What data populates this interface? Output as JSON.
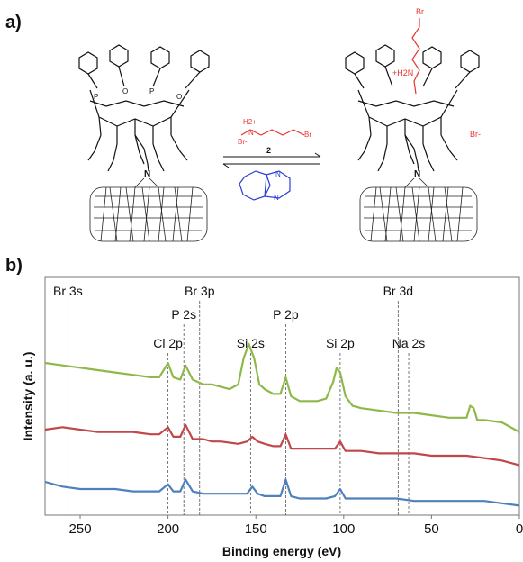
{
  "figure": {
    "panel_a_label": "a)",
    "panel_b_label": "b)"
  },
  "scheme": {
    "reagent_number": "2",
    "reagent_atoms": [
      "H2+",
      "N",
      "Br-",
      "Br"
    ],
    "left_atoms": [
      "N",
      "P",
      "O"
    ],
    "right_atoms": [
      "Br",
      "+H2N",
      "Br-",
      "N"
    ],
    "catalyst_atoms": [
      "N",
      "N"
    ],
    "reagent_color": "#e8332f",
    "catalyst_color": "#2b3fd6"
  },
  "chart_data": {
    "type": "line",
    "xlabel": "Binding energy (eV)",
    "ylabel": "Intensity (a. u.)",
    "xlim": [
      270,
      0
    ],
    "x_reversed": true,
    "xticks": [
      250,
      200,
      150,
      100,
      50,
      0
    ],
    "grid": false,
    "reference_lines": [
      {
        "label": "Br 3s",
        "x": 257
      },
      {
        "label": "Br 3p",
        "x": 182
      },
      {
        "label": "P 2s",
        "x": 191
      },
      {
        "label": "Cl 2p",
        "x": 200
      },
      {
        "label": "Si 2s",
        "x": 153
      },
      {
        "label": "P 2p",
        "x": 133
      },
      {
        "label": "Si 2p",
        "x": 102
      },
      {
        "label": "Br 3d",
        "x": 69
      },
      {
        "label": "Na 2s",
        "x": 63
      }
    ],
    "series": [
      {
        "color": "#8fb84a",
        "x": [
          270,
          260,
          250,
          240,
          230,
          220,
          210,
          205,
          200,
          197,
          193,
          190,
          186,
          180,
          175,
          170,
          165,
          160,
          157,
          154,
          151,
          148,
          145,
          140,
          136,
          133,
          130,
          125,
          120,
          115,
          110,
          106,
          104,
          102,
          99,
          95,
          90,
          80,
          70,
          60,
          50,
          40,
          30,
          28,
          26,
          24,
          20,
          10,
          0
        ],
        "y": [
          0.64,
          0.63,
          0.62,
          0.61,
          0.6,
          0.59,
          0.58,
          0.58,
          0.64,
          0.58,
          0.57,
          0.63,
          0.57,
          0.55,
          0.55,
          0.54,
          0.53,
          0.55,
          0.66,
          0.72,
          0.66,
          0.55,
          0.53,
          0.51,
          0.51,
          0.58,
          0.5,
          0.48,
          0.48,
          0.48,
          0.49,
          0.56,
          0.62,
          0.6,
          0.5,
          0.46,
          0.45,
          0.44,
          0.43,
          0.43,
          0.42,
          0.41,
          0.41,
          0.46,
          0.45,
          0.4,
          0.4,
          0.39,
          0.35
        ]
      },
      {
        "color": "#c0474a",
        "x": [
          270,
          260,
          250,
          240,
          230,
          220,
          210,
          205,
          200,
          197,
          193,
          190,
          186,
          180,
          175,
          170,
          160,
          155,
          152,
          149,
          145,
          140,
          136,
          133,
          130,
          125,
          120,
          110,
          105,
          102,
          99,
          95,
          90,
          80,
          70,
          60,
          50,
          40,
          30,
          20,
          10,
          0
        ],
        "y": [
          0.36,
          0.37,
          0.36,
          0.35,
          0.35,
          0.35,
          0.34,
          0.34,
          0.37,
          0.33,
          0.33,
          0.38,
          0.32,
          0.32,
          0.31,
          0.31,
          0.3,
          0.31,
          0.33,
          0.31,
          0.3,
          0.29,
          0.29,
          0.34,
          0.28,
          0.28,
          0.28,
          0.28,
          0.28,
          0.31,
          0.27,
          0.27,
          0.27,
          0.26,
          0.26,
          0.26,
          0.25,
          0.25,
          0.25,
          0.24,
          0.23,
          0.21
        ]
      },
      {
        "color": "#4f80bd",
        "x": [
          270,
          260,
          250,
          240,
          230,
          220,
          210,
          205,
          200,
          197,
          193,
          190,
          186,
          180,
          175,
          170,
          160,
          155,
          152,
          149,
          145,
          140,
          136,
          133,
          130,
          125,
          120,
          110,
          105,
          102,
          99,
          95,
          90,
          80,
          70,
          60,
          50,
          40,
          30,
          20,
          10,
          0
        ],
        "y": [
          0.14,
          0.12,
          0.11,
          0.11,
          0.11,
          0.1,
          0.1,
          0.1,
          0.13,
          0.1,
          0.1,
          0.15,
          0.1,
          0.09,
          0.09,
          0.09,
          0.09,
          0.09,
          0.12,
          0.09,
          0.08,
          0.08,
          0.08,
          0.15,
          0.08,
          0.07,
          0.07,
          0.07,
          0.08,
          0.11,
          0.07,
          0.07,
          0.07,
          0.07,
          0.07,
          0.06,
          0.06,
          0.06,
          0.06,
          0.06,
          0.05,
          0.04
        ]
      }
    ]
  }
}
